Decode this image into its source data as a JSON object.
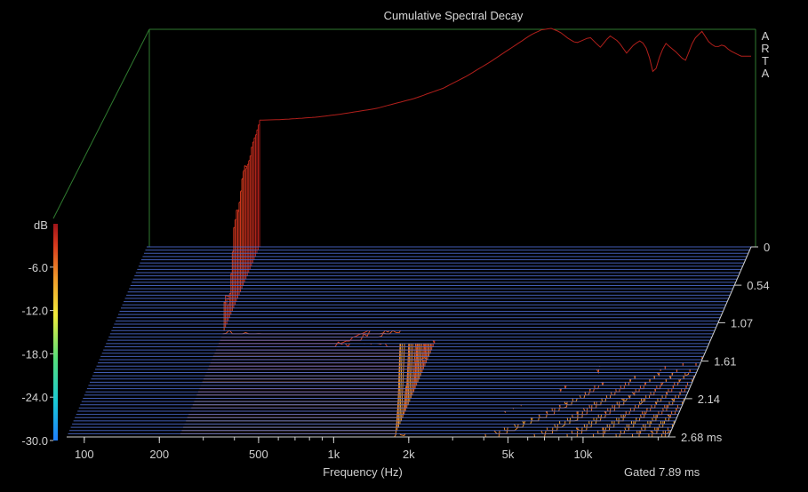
{
  "chart_data": {
    "type": "waterfall",
    "title": "Cumulative Spectral Decay",
    "watermark": "ARTA",
    "xlabel": "Frequency (Hz)",
    "x_scale": "log",
    "x_ticks": [
      {
        "value": 100,
        "label": "100"
      },
      {
        "value": 200,
        "label": "200"
      },
      {
        "value": 500,
        "label": "500"
      },
      {
        "value": 1000,
        "label": "1k"
      },
      {
        "value": 2000,
        "label": "2k"
      },
      {
        "value": 5000,
        "label": "5k"
      },
      {
        "value": 10000,
        "label": "10k"
      }
    ],
    "xlim": [
      85,
      22000
    ],
    "time_axis": {
      "unit": "ms",
      "ticks": [
        {
          "value": 0,
          "label": "0"
        },
        {
          "value": 0.54,
          "label": "0.54"
        },
        {
          "value": 1.07,
          "label": "1.07"
        },
        {
          "value": 1.61,
          "label": "1.61"
        },
        {
          "value": 2.14,
          "label": "2.14"
        },
        {
          "value": 2.68,
          "label": "2.68 ms"
        }
      ],
      "range": [
        0,
        2.68
      ]
    },
    "color_scale": {
      "label": "dB",
      "ticks": [
        {
          "value": -6,
          "label": "-6.0"
        },
        {
          "value": -12,
          "label": "-12.0"
        },
        {
          "value": -18,
          "label": "-18.0"
        },
        {
          "value": -24,
          "label": "-24.0"
        },
        {
          "value": -30,
          "label": "-30.0"
        }
      ],
      "range": [
        -30,
        0
      ],
      "colors": [
        "#1f7fff",
        "#19c9d6",
        "#57e07a",
        "#f2ec3a",
        "#f29a2a",
        "#d83a1e",
        "#a0141a"
      ]
    },
    "zlim": [
      -30,
      0
    ],
    "gate_note": "Gated 7.89 ms",
    "first_slice_response": {
      "frequencies": [
        240,
        300,
        400,
        500,
        700,
        1000,
        1300,
        1600,
        2000,
        2300,
        2600,
        2900,
        3200,
        3500,
        3800,
        4100,
        4400,
        4700,
        5000,
        5500,
        6000,
        6500,
        7000,
        7500,
        8000,
        8500,
        9000,
        9500,
        10000,
        11000,
        12000,
        13000,
        14000,
        15000,
        16000,
        17000,
        18000,
        20000
      ],
      "db": [
        -12.6,
        -12.5,
        -12.2,
        -11.8,
        -11.0,
        -9.6,
        -8.2,
        -6.6,
        -4.6,
        -3.2,
        -2.0,
        -0.9,
        -0.2,
        0.0,
        -0.5,
        -1.4,
        -2.0,
        -1.6,
        -1.2,
        -2.6,
        -1.0,
        -1.8,
        -3.4,
        -2.2,
        -1.6,
        -3.0,
        -6.5,
        -3.8,
        -2.0,
        -3.2,
        -4.5,
        -1.5,
        -0.4,
        -2.0,
        -2.6,
        -2.2,
        -3.0,
        -3.8
      ]
    },
    "slice_count": 60,
    "grid": false,
    "legend": "none"
  }
}
